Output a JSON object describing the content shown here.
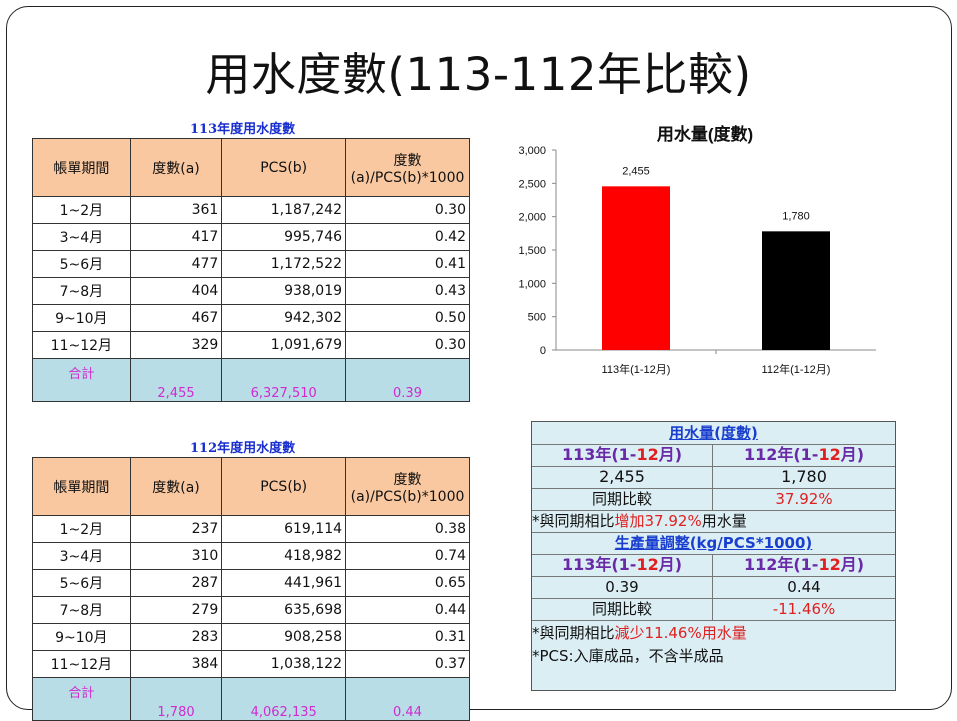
{
  "title": "用水度數(113-112年比較)",
  "t113": {
    "caption": "113年度用水度數",
    "headers": [
      "帳單期間",
      "度數(a)",
      "PCS(b)",
      "度數",
      "(a)/PCS(b)*1000"
    ],
    "rows": [
      [
        "1~2月",
        "361",
        "1,187,242",
        "0.30"
      ],
      [
        "3~4月",
        "417",
        "995,746",
        "0.42"
      ],
      [
        "5~6月",
        "477",
        "1,172,522",
        "0.41"
      ],
      [
        "7~8月",
        "404",
        "938,019",
        "0.43"
      ],
      [
        "9~10月",
        "467",
        "942,302",
        "0.50"
      ],
      [
        "11~12月",
        "329",
        "1,091,679",
        "0.30"
      ]
    ],
    "total": [
      "合計",
      "2,455",
      "6,327,510",
      "0.39"
    ]
  },
  "t112": {
    "caption": "112年度用水度數",
    "headers": [
      "帳單期間",
      "度數(a)",
      "PCS(b)",
      "度數",
      "(a)/PCS(b)*1000"
    ],
    "rows": [
      [
        "1~2月",
        "237",
        "619,114",
        "0.38"
      ],
      [
        "3~4月",
        "310",
        "418,982",
        "0.74"
      ],
      [
        "5~6月",
        "287",
        "441,961",
        "0.65"
      ],
      [
        "7~8月",
        "279",
        "635,698",
        "0.44"
      ],
      [
        "9~10月",
        "283",
        "908,258",
        "0.31"
      ],
      [
        "11~12月",
        "384",
        "1,038,122",
        "0.37"
      ]
    ],
    "total": [
      "合計",
      "1,780",
      "4,062,135",
      "0.44"
    ]
  },
  "chart_data": {
    "type": "bar",
    "title": "用水量(度數)",
    "categories": [
      "113年(1-12月)",
      "112年(1-12月)"
    ],
    "values": [
      2455,
      1780
    ],
    "value_labels": [
      "2,455",
      "1,780"
    ],
    "colors": [
      "#ff0000",
      "#000000"
    ],
    "ylim": [
      0,
      3000
    ],
    "yticks": [
      "0",
      "500",
      "1,000",
      "1,500",
      "2,000",
      "2,500",
      "3,000"
    ],
    "grid": false
  },
  "summary": {
    "title1": "用水量(度數)",
    "col1_a": "113年(1-",
    "col1_b": "12",
    "col1_c": "月)",
    "col2_a": "112年(1-",
    "col2_b": "12",
    "col2_c": "月)",
    "val1": "2,455",
    "val2": "1,780",
    "compare_label": "同期比較",
    "compare1": "37.92%",
    "note1_a": "*與同期相比",
    "note1_b": "增加37.92%",
    "note1_c": "用水量",
    "title2": "生產量調整(kg/PCS*1000)",
    "val3": "0.39",
    "val4": "0.44",
    "compare2": "-11.46%",
    "note2_a": "*與同期相比",
    "note2_b": "減少",
    "note2_c": "11.46%用水量",
    "note3": "*PCS:入庫成品，不含半成品"
  }
}
